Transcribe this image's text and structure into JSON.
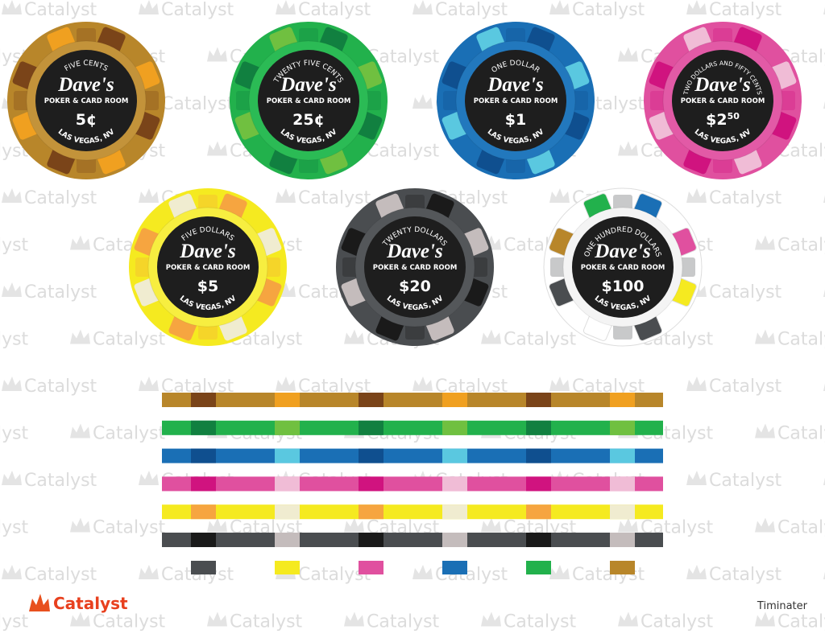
{
  "watermark": "Catalyst",
  "chips": [
    {
      "top_text": "FIVE CENTS",
      "name": "Dave's",
      "subtitle": "POKER & CARD ROOM",
      "value": "5¢",
      "location": "LAS VEGAS, NV"
    },
    {
      "top_text": "TWENTY FIVE CENTS",
      "name": "Dave's",
      "subtitle": "POKER & CARD ROOM",
      "value": "25¢",
      "location": "LAS VEGAS, NV"
    },
    {
      "top_text": "ONE DOLLAR",
      "name": "Dave's",
      "subtitle": "POKER & CARD ROOM",
      "value": "$1",
      "location": "LAS VEGAS, NV"
    },
    {
      "top_text": "TWO DOLLARS AND FIFTY CENTS",
      "name": "Dave's",
      "subtitle": "POKER & CARD ROOM",
      "value": "$2",
      "value_sup": "50",
      "location": "LAS VEGAS, NV"
    },
    {
      "top_text": "FIVE DOLLARS",
      "name": "Dave's",
      "subtitle": "POKER & CARD ROOM",
      "value": "$5",
      "location": "LAS VEGAS, NV"
    },
    {
      "top_text": "TWENTY DOLLARS",
      "name": "Dave's",
      "subtitle": "POKER & CARD ROOM",
      "value": "$20",
      "location": "LAS VEGAS, NV"
    },
    {
      "top_text": "ONE HUNDRED DOLLARS",
      "name": "Dave's",
      "subtitle": "POKER & CARD ROOM",
      "value": "$100",
      "location": "LAS VEGAS, NV"
    }
  ],
  "footer": {
    "logo": "Catalyst",
    "author": "Timinater"
  }
}
